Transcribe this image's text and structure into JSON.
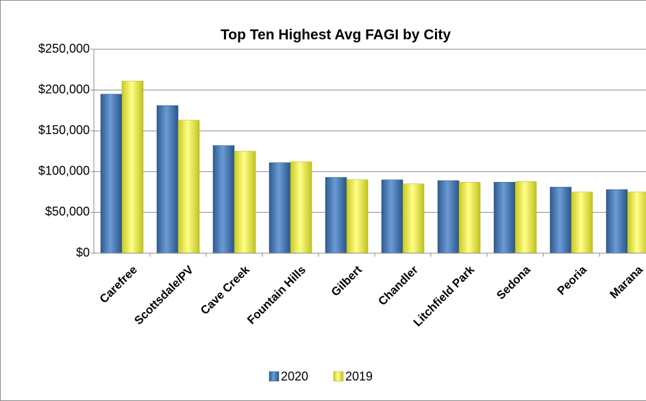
{
  "chart_data": {
    "type": "bar",
    "title": "Top Ten Highest Avg FAGI by City",
    "categories": [
      "Carefree",
      "Scottsdale/PV",
      "Cave Creek",
      "Fountain Hills",
      "Gilbert",
      "Chandler",
      "Litchfield Park",
      "Sedona",
      "Peoria",
      "Marana"
    ],
    "series": [
      {
        "name": "2020",
        "color": "#4f81bd",
        "values": [
          195000,
          181000,
          132000,
          111000,
          93000,
          90000,
          89000,
          87000,
          81000,
          78000
        ]
      },
      {
        "name": "2019",
        "color": "#f2f23c",
        "values": [
          211000,
          163000,
          125000,
          112000,
          90000,
          85000,
          87000,
          88000,
          75000,
          75000
        ]
      }
    ],
    "ylim": [
      0,
      250000
    ],
    "yticks": [
      {
        "value": 0,
        "label": "$0"
      },
      {
        "value": 50000,
        "label": "$50,000"
      },
      {
        "value": 100000,
        "label": "$100,000"
      },
      {
        "value": 150000,
        "label": "$150,000"
      },
      {
        "value": 200000,
        "label": "$200,000"
      },
      {
        "value": 250000,
        "label": "$250,000"
      }
    ],
    "grid": true,
    "legend": "bottom"
  }
}
